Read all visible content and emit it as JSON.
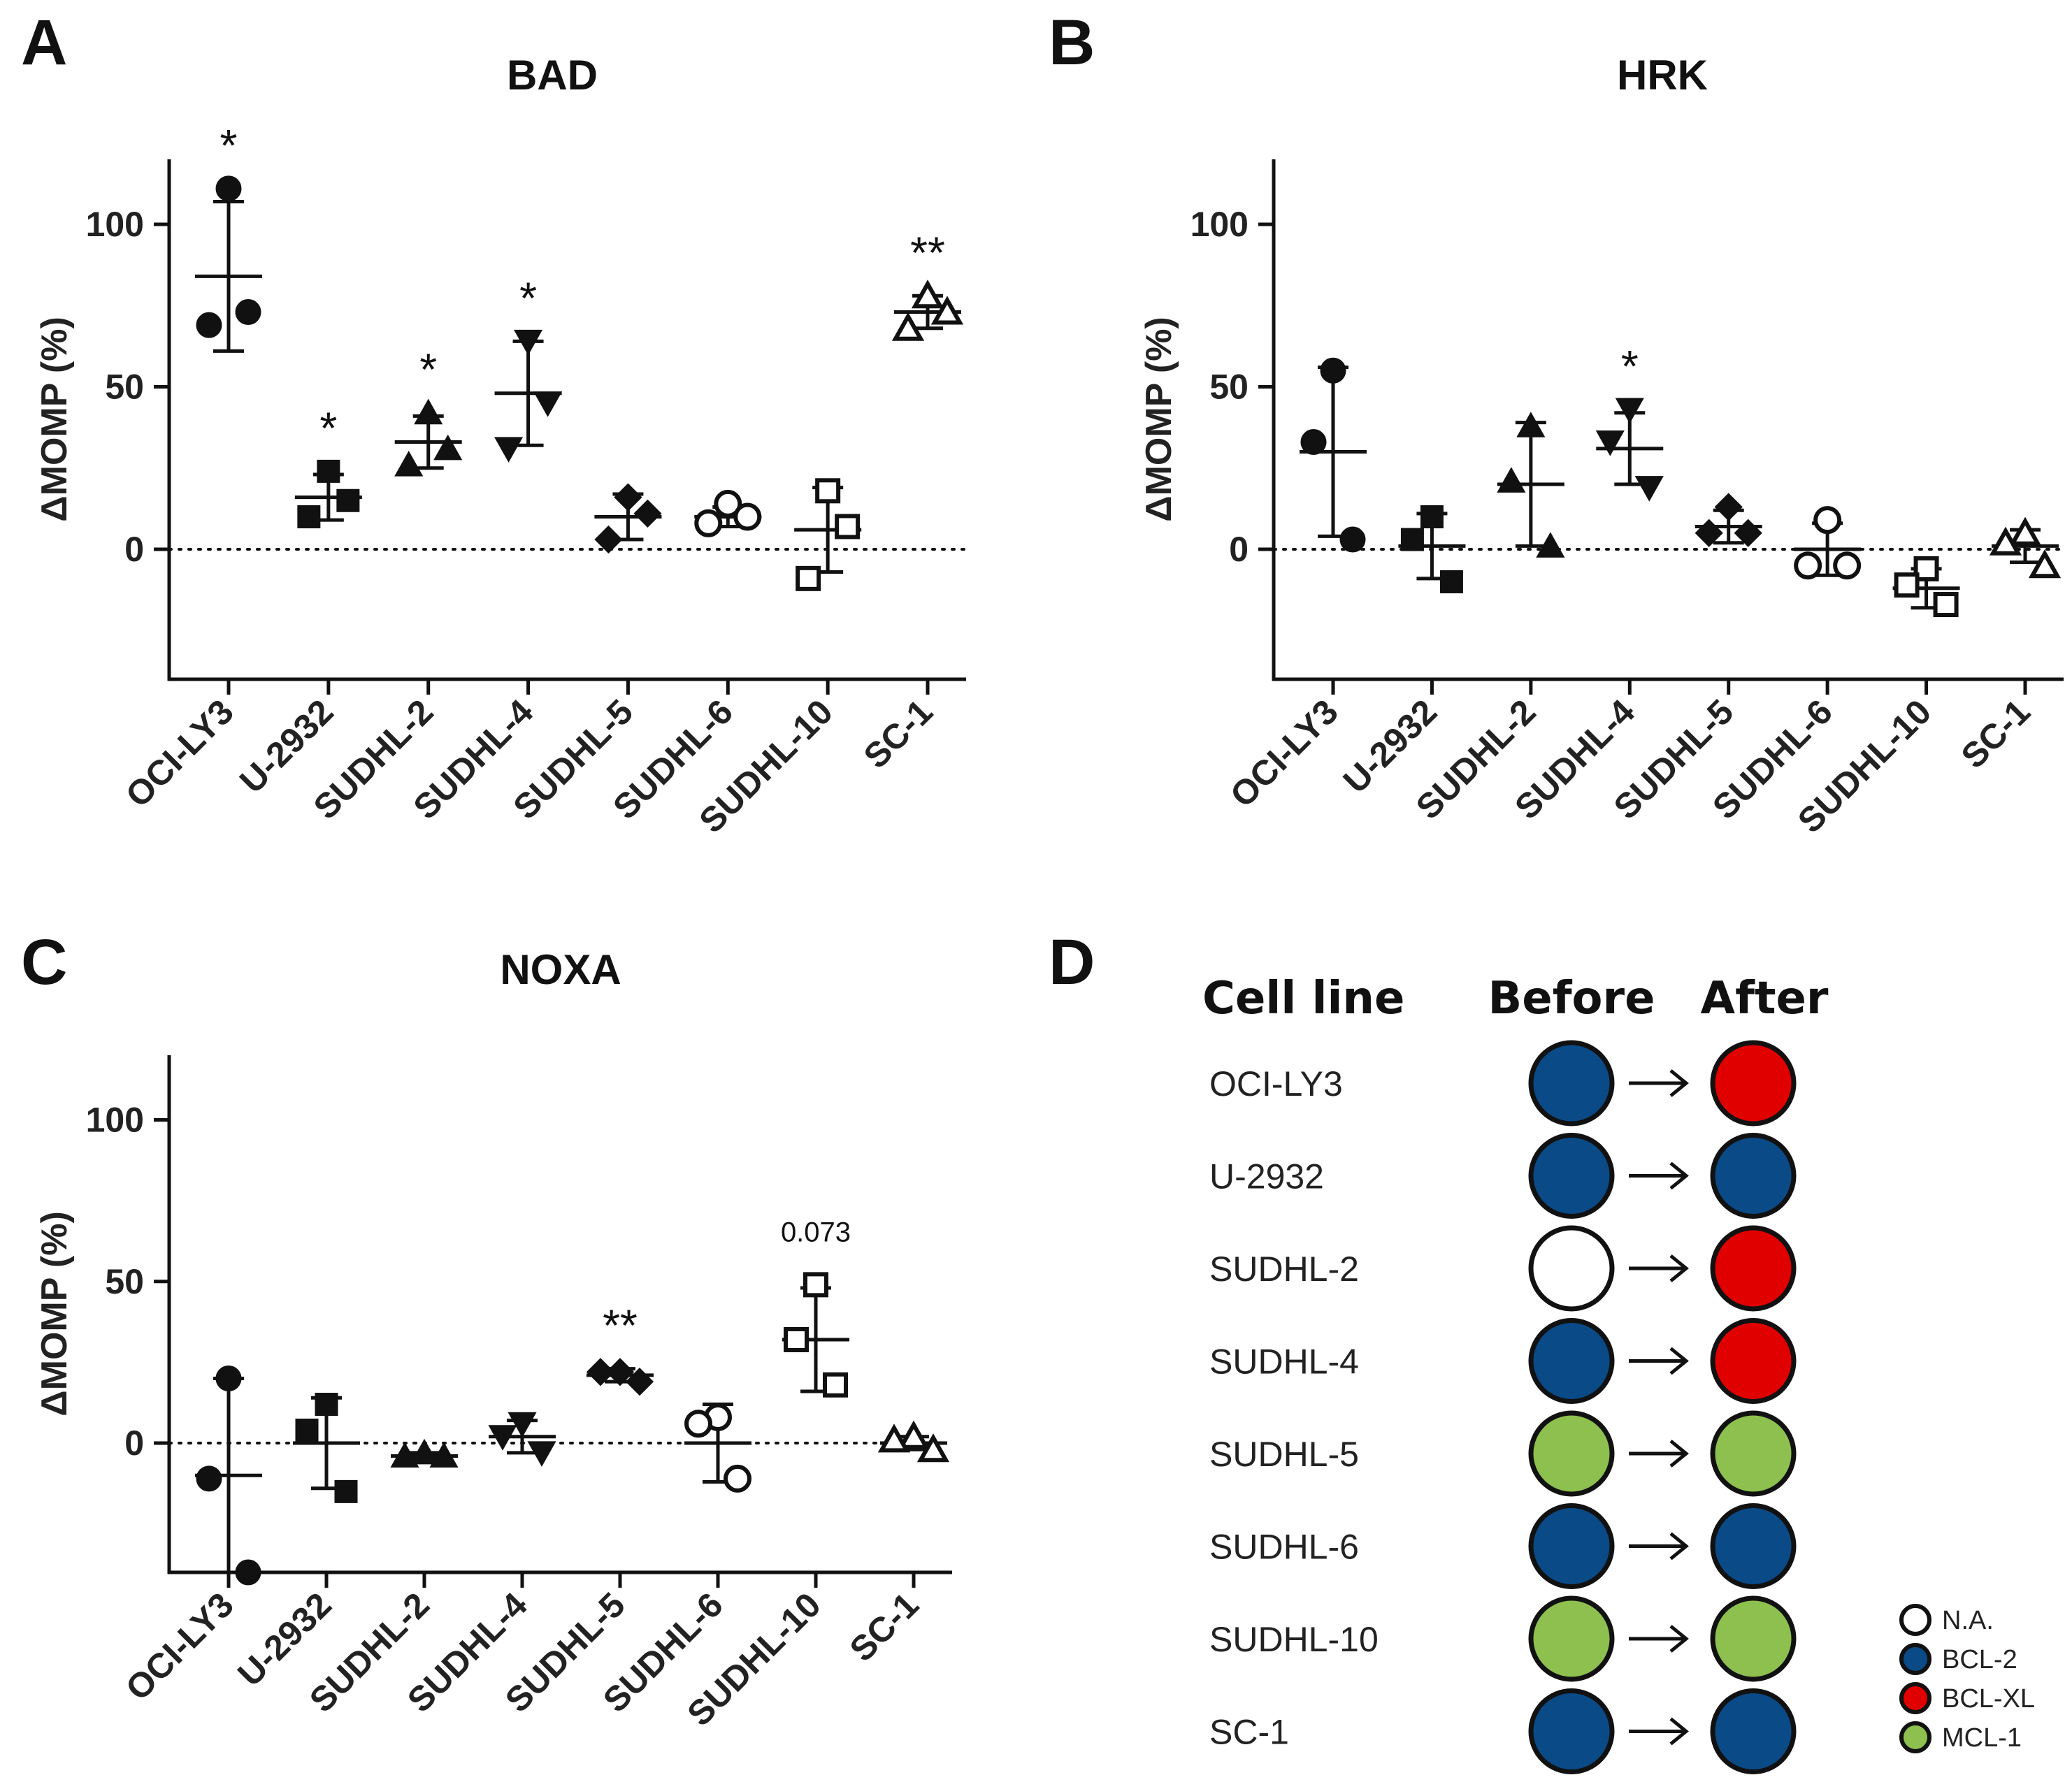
{
  "panels": {
    "A": "A",
    "B": "B",
    "C": "C",
    "D": "D"
  },
  "chart_data": [
    {
      "panel": "A",
      "type": "scatter",
      "title": "BAD",
      "ylabel": "ΔMOMP (%)",
      "xlabel": "",
      "ylim": [
        -40,
        120
      ],
      "yticks": [
        "0",
        "50",
        "100"
      ],
      "categories": [
        "OCI-LY3",
        "U-2932",
        "SUDHL-2",
        "SUDHL-4",
        "SUDHL-5",
        "SUDHL-6",
        "SUDHL-10",
        "SC-1"
      ],
      "markers": [
        "filled-circle",
        "filled-square",
        "filled-triangle",
        "filled-inverted-triangle",
        "filled-diamond",
        "open-circle",
        "open-square",
        "open-triangle"
      ],
      "points": [
        [
          111,
          69,
          73
        ],
        [
          24,
          10,
          15
        ],
        [
          42,
          26,
          31
        ],
        [
          64,
          31,
          45
        ],
        [
          16,
          3,
          11
        ],
        [
          14,
          8,
          10
        ],
        [
          18,
          -9,
          7
        ],
        [
          78,
          68,
          73
        ]
      ],
      "mean": [
        84,
        16,
        33,
        48,
        10,
        10,
        6,
        73
      ],
      "sd": [
        23,
        7,
        8,
        16,
        7,
        3,
        13,
        5
      ],
      "annotations": [
        "*",
        "*",
        "*",
        "*",
        "",
        "",
        "",
        "**"
      ],
      "reference_line": 0
    },
    {
      "panel": "B",
      "type": "scatter",
      "title": "HRK",
      "ylabel": "ΔMOMP (%)",
      "xlabel": "",
      "ylim": [
        -40,
        120
      ],
      "yticks": [
        "0",
        "50",
        "100"
      ],
      "categories": [
        "OCI-LY3",
        "U-2932",
        "SUDHL-2",
        "SUDHL-4",
        "SUDHL-5",
        "SUDHL-6",
        "SUDHL-10",
        "SC-1"
      ],
      "markers": [
        "filled-circle",
        "filled-square",
        "filled-triangle",
        "filled-inverted-triangle",
        "filled-diamond",
        "open-circle",
        "open-square",
        "open-triangle"
      ],
      "points": [
        [
          55,
          33,
          3
        ],
        [
          10,
          3,
          -10
        ],
        [
          38,
          21,
          1
        ],
        [
          43,
          33,
          19
        ],
        [
          13,
          5,
          5
        ],
        [
          9,
          -5,
          -5
        ],
        [
          -6,
          -11,
          -17
        ],
        [
          5,
          2,
          -5
        ]
      ],
      "mean": [
        30,
        1,
        20,
        31,
        7,
        0,
        -12,
        1
      ],
      "sd": [
        26,
        10,
        19,
        11,
        5,
        8,
        6,
        5
      ],
      "annotations": [
        "",
        "",
        "",
        "*",
        "",
        "",
        "",
        ""
      ],
      "reference_line": 0
    },
    {
      "panel": "C",
      "type": "scatter",
      "title": "NOXA",
      "ylabel": "ΔMOMP (%)",
      "xlabel": "",
      "ylim": [
        -40,
        120
      ],
      "yticks": [
        "0",
        "50",
        "100"
      ],
      "categories": [
        "OCI-LY3",
        "U-2932",
        "SUDHL-2",
        "SUDHL-4",
        "SUDHL-5",
        "SUDHL-6",
        "SUDHL-10",
        "SC-1"
      ],
      "markers": [
        "filled-circle",
        "filled-square",
        "filled-triangle",
        "filled-inverted-triangle",
        "filled-diamond",
        "open-circle",
        "open-square",
        "open-triangle"
      ],
      "points": [
        [
          20,
          -11,
          -40
        ],
        [
          12,
          4,
          -15
        ],
        [
          -3,
          -4,
          -4
        ],
        [
          6,
          2,
          -3
        ],
        [
          22,
          22,
          19
        ],
        [
          8,
          6,
          -11
        ],
        [
          49,
          32,
          18
        ],
        [
          2,
          1,
          -2
        ]
      ],
      "mean": [
        -10,
        0,
        -4,
        2,
        21,
        0,
        32,
        0
      ],
      "sd": [
        30,
        14,
        1,
        5,
        2,
        12,
        16,
        2
      ],
      "annotations": [
        "",
        "",
        "",
        "",
        "**",
        "",
        "0.073",
        ""
      ],
      "reference_line": 0
    }
  ],
  "panel_d": {
    "headers": {
      "cell_line": "Cell line",
      "before": "Before",
      "after": "After"
    },
    "rows": [
      {
        "name": "OCI-LY3",
        "before": "BCL-2",
        "after": "BCL-XL"
      },
      {
        "name": "U-2932",
        "before": "BCL-2",
        "after": "BCL-2"
      },
      {
        "name": "SUDHL-2",
        "before": "N.A.",
        "after": "BCL-XL"
      },
      {
        "name": "SUDHL-4",
        "before": "BCL-2",
        "after": "BCL-XL"
      },
      {
        "name": "SUDHL-5",
        "before": "MCL-1",
        "after": "MCL-1"
      },
      {
        "name": "SUDHL-6",
        "before": "BCL-2",
        "after": "BCL-2"
      },
      {
        "name": "SUDHL-10",
        "before": "MCL-1",
        "after": "MCL-1"
      },
      {
        "name": "SC-1",
        "before": "BCL-2",
        "after": "BCL-2"
      }
    ],
    "legend": [
      {
        "label": "N.A.",
        "color": "#ffffff"
      },
      {
        "label": "BCL-2",
        "color": "#0a4a86"
      },
      {
        "label": "BCL-XL",
        "color": "#e00000"
      },
      {
        "label": "MCL-1",
        "color": "#8dc04e"
      }
    ]
  }
}
